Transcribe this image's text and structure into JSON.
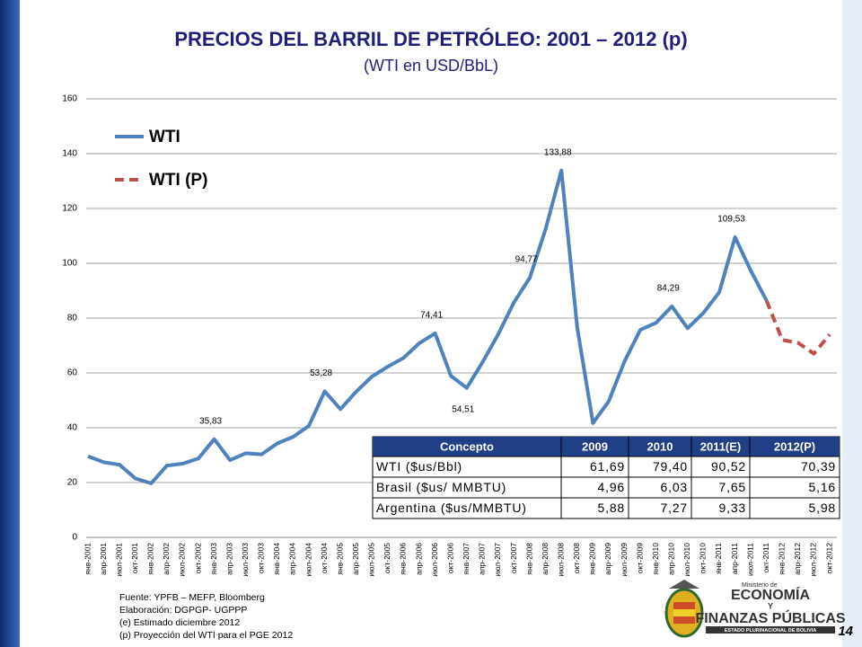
{
  "header": {
    "title": "PRECIOS DEL BARRIL DE PETRÓLEO: 2001 – 2012 (p)",
    "subtitle": "(WTI en USD/BbL)"
  },
  "chart_data": {
    "type": "line",
    "categories": [
      "янв-2001",
      "апр-2001",
      "июл-2001",
      "окт-2001",
      "янв-2002",
      "апр-2002",
      "июл-2002",
      "окт-2002",
      "янв-2003",
      "апр-2003",
      "июл-2003",
      "окт-2003",
      "янв-2004",
      "апр-2004",
      "июл-2004",
      "окт-2004",
      "янв-2005",
      "апр-2005",
      "июл-2005",
      "окт-2005",
      "янв-2006",
      "апр-2006",
      "июл-2006",
      "окт-2006",
      "янв-2007",
      "апр-2007",
      "июл-2007",
      "окт-2007",
      "янв-2008",
      "апр-2008",
      "июл-2008",
      "окт-2008",
      "янв-2009",
      "апр-2009",
      "июл-2009",
      "окт-2009",
      "янв-2010",
      "апр-2010",
      "июл-2010",
      "окт-2010",
      "янв-2011",
      "апр-2011",
      "июл-2011",
      "окт-2011",
      "янв-2012",
      "апр-2012",
      "июл-2012",
      "окт-2012"
    ],
    "series": [
      {
        "name": "WTI",
        "color": "#4f81bd",
        "dashed": false,
        "values": [
          29.6,
          27.4,
          26.5,
          21.5,
          19.7,
          26.2,
          26.9,
          28.8,
          35.83,
          28.2,
          30.7,
          30.3,
          34.3,
          36.7,
          40.7,
          53.28,
          46.8,
          53.2,
          58.7,
          62.3,
          65.5,
          70.9,
          74.41,
          58.9,
          54.51,
          63.9,
          74.1,
          85.8,
          94.77,
          112.6,
          133.88,
          76.7,
          41.7,
          49.7,
          64.2,
          75.7,
          78.3,
          84.29,
          76.3,
          81.9,
          89.4,
          109.53,
          97.3,
          86.4,
          null,
          null,
          null,
          null
        ],
        "value_labels": [
          null,
          null,
          null,
          null,
          null,
          null,
          null,
          null,
          "35,83",
          null,
          null,
          null,
          null,
          null,
          null,
          "53,28",
          null,
          null,
          null,
          null,
          null,
          null,
          "74,41",
          null,
          "54,51",
          null,
          null,
          null,
          "94,77",
          null,
          "133,88",
          null,
          null,
          null,
          null,
          null,
          null,
          "84,29",
          null,
          null,
          null,
          "109,53",
          null,
          null,
          null,
          null,
          null,
          null
        ]
      },
      {
        "name": "WTI  (P)",
        "color": "#c0504d",
        "dashed": true,
        "values": [
          null,
          null,
          null,
          null,
          null,
          null,
          null,
          null,
          null,
          null,
          null,
          null,
          null,
          null,
          null,
          null,
          null,
          null,
          null,
          null,
          null,
          null,
          null,
          null,
          null,
          null,
          null,
          null,
          null,
          null,
          null,
          null,
          null,
          null,
          null,
          null,
          null,
          null,
          null,
          null,
          null,
          null,
          null,
          86.4,
          72,
          71,
          67,
          74
        ]
      }
    ],
    "ylim": [
      0,
      160
    ],
    "yticks": [
      0,
      20,
      40,
      60,
      80,
      100,
      120,
      140,
      160
    ],
    "grid": true,
    "legend": "top-left"
  },
  "table": {
    "header": [
      "Concepto",
      "2009",
      "2010",
      "2011(E)",
      "2012(P)"
    ],
    "rows": [
      [
        "WTI ($us/Bbl)",
        "61,69",
        "79,40",
        "90,52",
        "70,39"
      ],
      [
        "Brasil ($us/ MMBTU)",
        "4,96",
        "6,03",
        "7,65",
        "5,16"
      ],
      [
        "Argentina ($us/MMBTU)",
        "5,88",
        "7,27",
        "9,33",
        "5,98"
      ]
    ]
  },
  "footer": {
    "notes": [
      "Fuente: YPFB – MEFP, Bloomberg",
      "Elaboración: DGPGP- UGPPP",
      "(e) Estimado diciembre 2012",
      "(p) Proyección del WTI para el PGE 2012"
    ],
    "logo_small": "Ministerio de",
    "logo_line1": "ECONOMÍA",
    "logo_y": "Y",
    "logo_line2": "FINANZAS PÚBLICAS",
    "logo_sub": "ESTADO PLURINACIONAL DE BOLIVIA",
    "page": "14"
  }
}
